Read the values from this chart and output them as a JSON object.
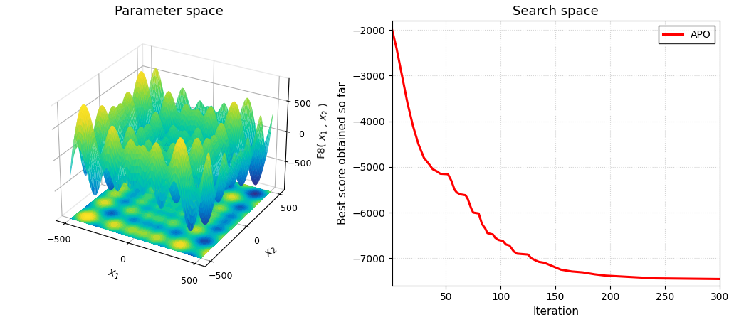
{
  "title_3d": "Parameter space",
  "title_2d": "Search space",
  "xlabel_3d": "$x_1$",
  "ylabel_3d": "$x_2$",
  "zlabel_3d": "F8( $x_1$ , $x_2$ )",
  "x_range": [
    -500,
    500
  ],
  "y_range": [
    -500,
    500
  ],
  "line_color": "#ff0000",
  "line_label": "APO",
  "ylabel_2d": "Best score obtained so far",
  "xlabel_2d": "Iteration",
  "xlim_2d": [
    1,
    300
  ],
  "ylim_2d": [
    -7600,
    -1800
  ],
  "yticks_2d": [
    -7000,
    -6000,
    -5000,
    -4000,
    -3000,
    -2000
  ],
  "xticks_2d": [
    50,
    100,
    150,
    200,
    250,
    300
  ],
  "grid_color": "#d3d3d3",
  "background_color": "#ffffff",
  "elev": 28,
  "azim": -60
}
